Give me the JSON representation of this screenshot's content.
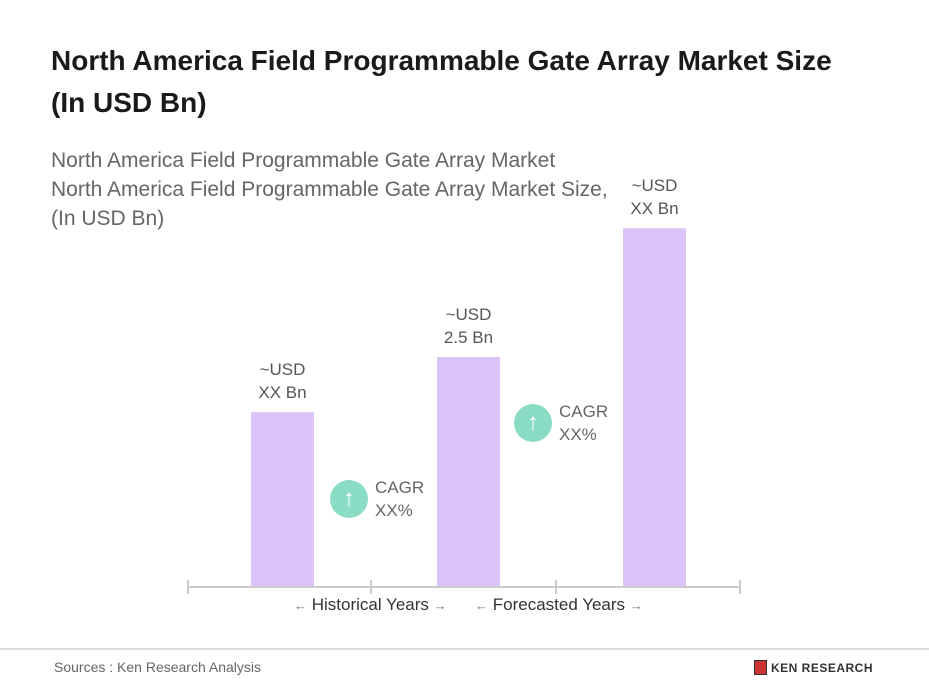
{
  "title": "North America Field Programmable Gate Array Market Size (In USD Bn)",
  "subtitle": "North America Field Programmable Gate Array Market North America Field Programmable Gate Array Market Size, (In USD Bn)",
  "colors": {
    "bar": "#dcc3f7",
    "cagr_badge": "#8bdcc4",
    "axis": "#cccccc"
  },
  "chart_data": {
    "type": "bar",
    "categories": [
      "",
      "",
      ""
    ],
    "values": [
      1.9,
      2.5,
      3.9
    ],
    "data_labels": [
      {
        "line1": "~USD",
        "line2": "XX Bn"
      },
      {
        "line1": "~USD",
        "line2": "2.5 Bn"
      },
      {
        "line1": "~USD",
        "line2": "XX Bn"
      }
    ],
    "ylim": [
      0,
      4
    ],
    "grid": false,
    "annotations": [
      {
        "icon": "arrow-up-icon",
        "line1": "CAGR",
        "line2": "XX%"
      },
      {
        "icon": "arrow-up-icon",
        "line1": "CAGR",
        "line2": "XX%"
      }
    ],
    "periods": [
      {
        "label": "Historical Years",
        "left_arrow": "←",
        "right_arrow": "→"
      },
      {
        "label": "Forecasted Years",
        "left_arrow": "←",
        "right_arrow": "→"
      }
    ]
  },
  "footer": {
    "source": "Sources : Ken Research Analysis",
    "logo_text": "KEN RESEARCH"
  }
}
